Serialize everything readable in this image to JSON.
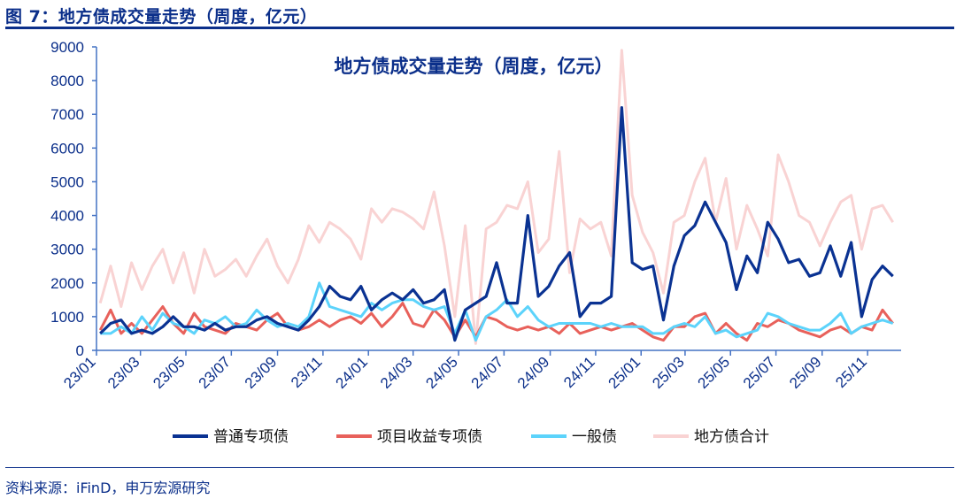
{
  "figure_title": "图 7：地方债成交量走势（周度，亿元）",
  "source": "资料来源：iFinD，申万宏源研究",
  "colors": {
    "axis": "#4472c4",
    "text": "#0b2f8a",
    "普通专项债": "#0a3292",
    "项目收益专项债": "#e8615b",
    "一般债": "#5cd3fb",
    "地方债合计": "#f9d3d3"
  },
  "chart_data": {
    "type": "line",
    "title": "地方债成交量走势（周度，亿元）",
    "ylim": [
      0,
      9000
    ],
    "yticks": [
      0,
      1000,
      2000,
      3000,
      4000,
      5000,
      6000,
      7000,
      8000,
      9000
    ],
    "xtick_labels": [
      "23/01",
      "23/03",
      "23/05",
      "23/07",
      "23/09",
      "23/11",
      "24/01",
      "24/03",
      "24/05",
      "24/07",
      "24/09",
      "24/11",
      "25/01",
      "25/03",
      "25/05",
      "25/07",
      "25/09",
      "25/11"
    ],
    "xtick_dates": [
      "2023-01-01",
      "2023-03-01",
      "2023-05-01",
      "2023-07-01",
      "2023-09-01",
      "2023-11-01",
      "2024-01-01",
      "2024-03-01",
      "2024-05-01",
      "2024-07-01",
      "2024-09-01",
      "2024-11-01",
      "2025-01-01",
      "2025-03-01",
      "2025-05-01",
      "2025-07-01",
      "2025-09-01",
      "2025-11-01"
    ],
    "grid": false,
    "legend": "bottom",
    "x": [
      "2023-01-06",
      "2023-01-20",
      "2023-02-03",
      "2023-02-17",
      "2023-03-03",
      "2023-03-17",
      "2023-03-31",
      "2023-04-14",
      "2023-04-28",
      "2023-05-12",
      "2023-05-26",
      "2023-06-09",
      "2023-06-23",
      "2023-07-07",
      "2023-07-21",
      "2023-08-04",
      "2023-08-18",
      "2023-09-01",
      "2023-09-15",
      "2023-09-29",
      "2023-10-13",
      "2023-10-27",
      "2023-11-10",
      "2023-11-24",
      "2023-12-08",
      "2023-12-22",
      "2024-01-05",
      "2024-01-19",
      "2024-02-02",
      "2024-02-16",
      "2024-03-01",
      "2024-03-15",
      "2024-03-29",
      "2024-04-12",
      "2024-04-26",
      "2024-05-10",
      "2024-05-24",
      "2024-06-07",
      "2024-06-21",
      "2024-07-05",
      "2024-07-19",
      "2024-08-02",
      "2024-08-16",
      "2024-08-30",
      "2024-09-13",
      "2024-09-27",
      "2024-10-11",
      "2024-10-25",
      "2024-11-08",
      "2024-11-22",
      "2024-12-06",
      "2024-12-20",
      "2025-01-03",
      "2025-01-17",
      "2025-01-31",
      "2025-02-14",
      "2025-02-28",
      "2025-03-14",
      "2025-03-28",
      "2025-04-11",
      "2025-04-25",
      "2025-05-09",
      "2025-05-23",
      "2025-06-06",
      "2025-06-20",
      "2025-07-04",
      "2025-07-18",
      "2025-08-01",
      "2025-08-15",
      "2025-08-29",
      "2025-09-12",
      "2025-09-26",
      "2025-10-10",
      "2025-10-24",
      "2025-11-07",
      "2025-11-21",
      "2025-12-05"
    ],
    "series": [
      {
        "name": "地方债合计",
        "values": [
          1400,
          2500,
          1300,
          2600,
          1800,
          2500,
          3000,
          2000,
          2900,
          1700,
          3000,
          2200,
          2400,
          2700,
          2200,
          2800,
          3300,
          2500,
          2000,
          2700,
          3700,
          3200,
          3800,
          3600,
          3300,
          2700,
          4200,
          3800,
          4200,
          4100,
          3900,
          3600,
          4700,
          3100,
          1000,
          3700,
          200,
          3600,
          3800,
          4300,
          4200,
          5000,
          2900,
          3300,
          5900,
          2300,
          3900,
          3600,
          3800,
          2800,
          8900,
          4600,
          3500,
          2900,
          1700,
          3800,
          4000,
          5000,
          5700,
          3800,
          5100,
          3000,
          4300,
          3600,
          2800,
          5800,
          5000,
          4000,
          3800,
          3100,
          3800,
          4400,
          4600,
          3000,
          4200,
          4300,
          3800
        ]
      },
      {
        "name": "项目收益专项债",
        "values": [
          600,
          1200,
          500,
          800,
          500,
          900,
          1300,
          800,
          500,
          1100,
          700,
          600,
          500,
          800,
          700,
          600,
          900,
          1100,
          700,
          600,
          700,
          900,
          700,
          900,
          1000,
          800,
          1100,
          700,
          1000,
          1400,
          800,
          700,
          1200,
          900,
          400,
          900,
          400,
          1000,
          900,
          700,
          600,
          700,
          600,
          700,
          500,
          800,
          500,
          600,
          700,
          600,
          700,
          800,
          600,
          400,
          300,
          700,
          700,
          1000,
          1100,
          500,
          800,
          500,
          300,
          800,
          700,
          900,
          800,
          600,
          500,
          400,
          600,
          700,
          500,
          700,
          600,
          1200,
          800
        ]
      },
      {
        "name": "一般债",
        "values": [
          500,
          500,
          700,
          500,
          1000,
          600,
          1100,
          800,
          700,
          500,
          900,
          800,
          1000,
          700,
          800,
          1200,
          900,
          700,
          800,
          700,
          1000,
          2000,
          1300,
          1200,
          1100,
          1000,
          1400,
          1200,
          1400,
          1500,
          1500,
          1300,
          1200,
          1300,
          500,
          1200,
          300,
          1000,
          1200,
          1500,
          1000,
          1300,
          900,
          700,
          800,
          800,
          800,
          800,
          700,
          800,
          700,
          700,
          700,
          500,
          500,
          700,
          800,
          700,
          1000,
          500,
          600,
          400,
          500,
          600,
          1100,
          1000,
          800,
          700,
          600,
          600,
          800,
          1100,
          500,
          700,
          800,
          900,
          800
        ]
      },
      {
        "name": "普通专项债",
        "values": [
          500,
          800,
          900,
          500,
          600,
          500,
          700,
          1000,
          700,
          700,
          600,
          800,
          600,
          700,
          700,
          900,
          1000,
          800,
          700,
          600,
          900,
          1300,
          1900,
          1600,
          1500,
          1900,
          1200,
          1500,
          1700,
          1500,
          1800,
          1400,
          1500,
          1800,
          300,
          1200,
          1400,
          1600,
          2600,
          1400,
          1400,
          4000,
          1600,
          1900,
          2500,
          2900,
          1000,
          1400,
          1400,
          1600,
          7200,
          2600,
          2400,
          2500,
          900,
          2500,
          3400,
          3700,
          4400,
          3800,
          3200,
          1800,
          2800,
          2300,
          3800,
          3300,
          2600,
          2700,
          2200,
          2300,
          3100,
          2200,
          3200,
          1000,
          2100,
          2500,
          2200
        ]
      }
    ],
    "legend_order": [
      "普通专项债",
      "项目收益专项债",
      "一般债",
      "地方债合计"
    ]
  }
}
